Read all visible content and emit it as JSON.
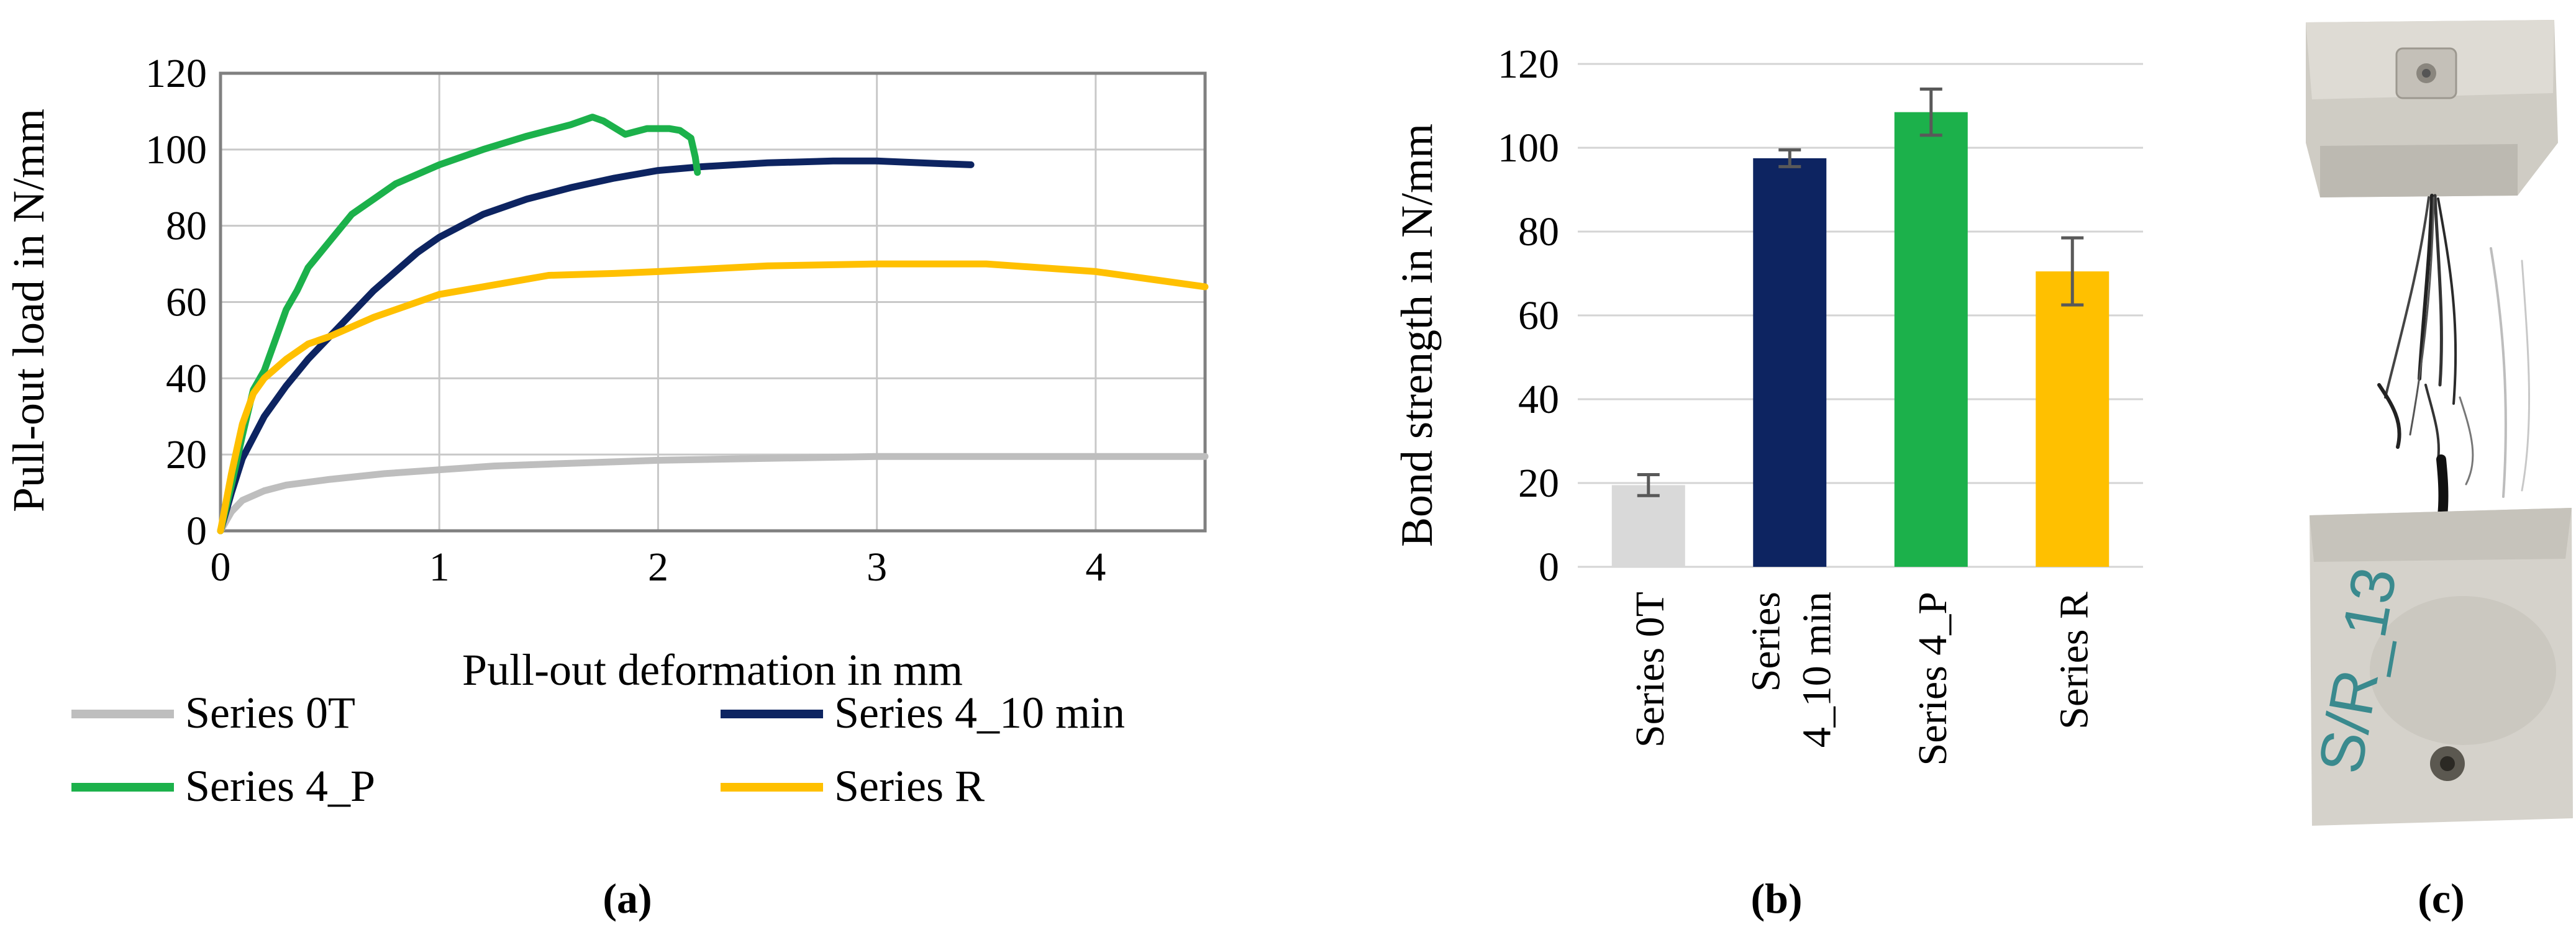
{
  "chart_data": [
    {
      "type": "line",
      "panel_label": "(a)",
      "xlabel": "Pull-out deformation in mm",
      "ylabel": "Pull-out load in N/mm",
      "xlim": [
        0,
        4.5
      ],
      "ylim": [
        0,
        120
      ],
      "xticks": [
        "0",
        "1",
        "2",
        "3",
        "4"
      ],
      "yticks": [
        "0",
        "20",
        "40",
        "60",
        "80",
        "100",
        "120"
      ],
      "grid": true,
      "legend_position": "bottom",
      "series": [
        {
          "name": "Series 0T",
          "color": "#BEBEBE",
          "points": [
            [
              0,
              0
            ],
            [
              0.05,
              5
            ],
            [
              0.1,
              8
            ],
            [
              0.2,
              10.5
            ],
            [
              0.3,
              12
            ],
            [
              0.5,
              13.5
            ],
            [
              0.75,
              15
            ],
            [
              1.0,
              16
            ],
            [
              1.25,
              17
            ],
            [
              1.5,
              17.5
            ],
            [
              2.0,
              18.5
            ],
            [
              2.5,
              19
            ],
            [
              3.0,
              19.5
            ],
            [
              3.5,
              19.5
            ],
            [
              4.0,
              19.5
            ],
            [
              4.5,
              19.5
            ]
          ]
        },
        {
          "name": "Series 4_10 min",
          "color": "#0D2461",
          "points": [
            [
              0,
              0
            ],
            [
              0.05,
              10
            ],
            [
              0.1,
              19
            ],
            [
              0.2,
              30
            ],
            [
              0.3,
              38
            ],
            [
              0.4,
              45
            ],
            [
              0.5,
              51
            ],
            [
              0.6,
              57
            ],
            [
              0.7,
              63
            ],
            [
              0.8,
              68
            ],
            [
              0.9,
              73
            ],
            [
              1.0,
              77
            ],
            [
              1.2,
              83
            ],
            [
              1.4,
              87
            ],
            [
              1.6,
              90
            ],
            [
              1.8,
              92.5
            ],
            [
              2.0,
              94.5
            ],
            [
              2.2,
              95.5
            ],
            [
              2.5,
              96.5
            ],
            [
              2.8,
              97
            ],
            [
              3.0,
              97
            ],
            [
              3.2,
              96.5
            ],
            [
              3.43,
              96
            ]
          ]
        },
        {
          "name": "Series 4_P",
          "color": "#1CB14B",
          "points": [
            [
              0,
              0
            ],
            [
              0.05,
              12
            ],
            [
              0.1,
              25
            ],
            [
              0.15,
              37
            ],
            [
              0.2,
              42
            ],
            [
              0.25,
              50
            ],
            [
              0.3,
              58
            ],
            [
              0.35,
              63
            ],
            [
              0.4,
              69
            ],
            [
              0.5,
              76
            ],
            [
              0.6,
              83
            ],
            [
              0.7,
              87
            ],
            [
              0.8,
              91
            ],
            [
              1.0,
              96
            ],
            [
              1.2,
              100
            ],
            [
              1.4,
              103.5
            ],
            [
              1.6,
              106.5
            ],
            [
              1.7,
              108.5
            ],
            [
              1.75,
              107.5
            ],
            [
              1.85,
              104
            ],
            [
              1.95,
              105.5
            ],
            [
              2.05,
              105.5
            ],
            [
              2.1,
              105
            ],
            [
              2.15,
              103
            ],
            [
              2.17,
              98
            ],
            [
              2.18,
              94
            ]
          ]
        },
        {
          "name": "Series R",
          "color": "#FFC000",
          "points": [
            [
              0,
              0
            ],
            [
              0.05,
              15
            ],
            [
              0.1,
              28
            ],
            [
              0.15,
              36
            ],
            [
              0.2,
              40
            ],
            [
              0.3,
              45
            ],
            [
              0.4,
              49
            ],
            [
              0.5,
              51
            ],
            [
              0.7,
              56
            ],
            [
              1.0,
              62
            ],
            [
              1.3,
              65
            ],
            [
              1.5,
              67
            ],
            [
              1.8,
              67.5
            ],
            [
              2.0,
              68
            ],
            [
              2.5,
              69.5
            ],
            [
              3.0,
              70
            ],
            [
              3.5,
              70
            ],
            [
              4.0,
              68
            ],
            [
              4.5,
              64
            ]
          ]
        }
      ]
    },
    {
      "type": "bar",
      "panel_label": "(b)",
      "ylabel": "Bond strength in N/mm",
      "ylim": [
        0,
        120
      ],
      "yticks": [
        "0",
        "20",
        "40",
        "60",
        "80",
        "100",
        "120"
      ],
      "grid": true,
      "categories": [
        "Series 0T",
        "Series 4_10 min",
        "Series 4_P",
        "Series R"
      ],
      "category_lines": [
        [
          "Series 0T"
        ],
        [
          "Series",
          "4_10 min"
        ],
        [
          "Series 4_P"
        ],
        [
          "Series R"
        ]
      ],
      "values": [
        19.5,
        97.5,
        108.5,
        70.5
      ],
      "errors": [
        2.5,
        2,
        5.5,
        8
      ],
      "colors": [
        "#D9D9D9",
        "#0D2461",
        "#1CB14B",
        "#FFC000"
      ]
    }
  ],
  "photo": {
    "panel_label": "(c)",
    "label_text": "S/R_13"
  }
}
